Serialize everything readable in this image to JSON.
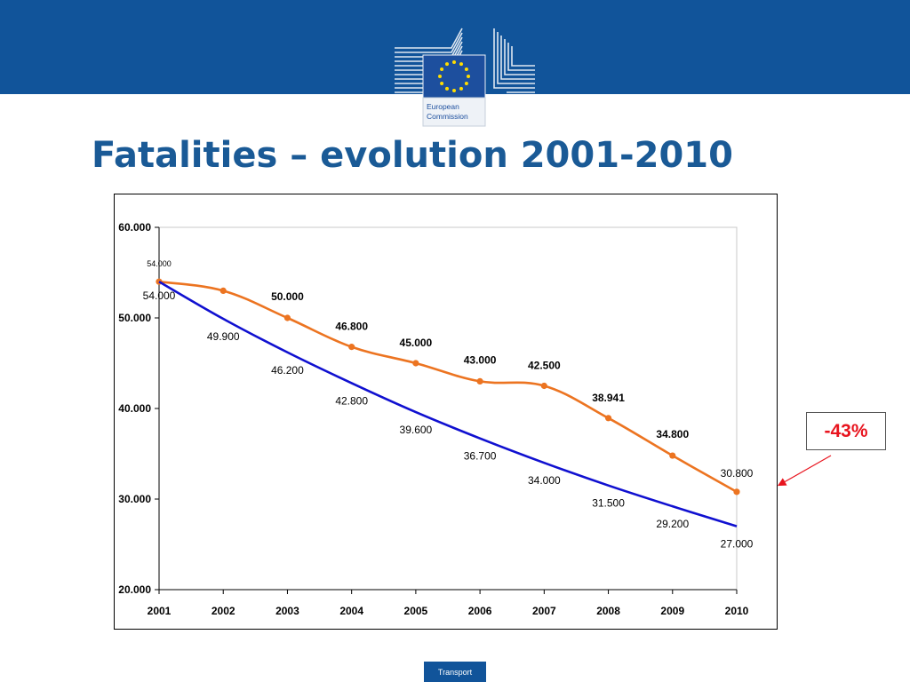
{
  "header": {
    "logo_text_line1": "European",
    "logo_text_line2": "Commission",
    "brand_color": "#11549a"
  },
  "title": "Fatalities – evolution 2001-2010",
  "callout": {
    "text": "-43%",
    "color": "#e8141e"
  },
  "footer": {
    "tab_label": "Transport"
  },
  "chart_data": {
    "type": "line",
    "title": "",
    "xlabel": "",
    "ylabel": "",
    "x": [
      "2001",
      "2002",
      "2003",
      "2004",
      "2005",
      "2006",
      "2007",
      "2008",
      "2009",
      "2010"
    ],
    "ylim": [
      20000,
      60000
    ],
    "yticks": [
      "20.000",
      "30.000",
      "40.000",
      "50.000",
      "60.000"
    ],
    "grid": false,
    "series": [
      {
        "color": "#ec7421",
        "markers": true,
        "values": [
          54000,
          53000,
          50000,
          46800,
          45000,
          43000,
          42500,
          38941,
          34800,
          30800
        ],
        "labels": [
          "54.000",
          "",
          "50.000",
          "46.800",
          "45.000",
          "43.000",
          "42.500",
          "38.941",
          "34.800",
          "30.800"
        ],
        "label_bold": [
          false,
          false,
          true,
          true,
          true,
          true,
          true,
          true,
          true,
          false
        ]
      },
      {
        "color": "#1010d0",
        "markers": false,
        "values": [
          54000,
          49900,
          46200,
          42800,
          39600,
          36700,
          34000,
          31500,
          29200,
          27000
        ],
        "labels": [
          "54.000",
          "49.900",
          "46.200",
          "42.800",
          "39.600",
          "36.700",
          "34.000",
          "31.500",
          "29.200",
          "27.000"
        ],
        "label_bold": [
          false,
          false,
          false,
          false,
          false,
          false,
          false,
          false,
          false,
          false
        ]
      }
    ]
  }
}
